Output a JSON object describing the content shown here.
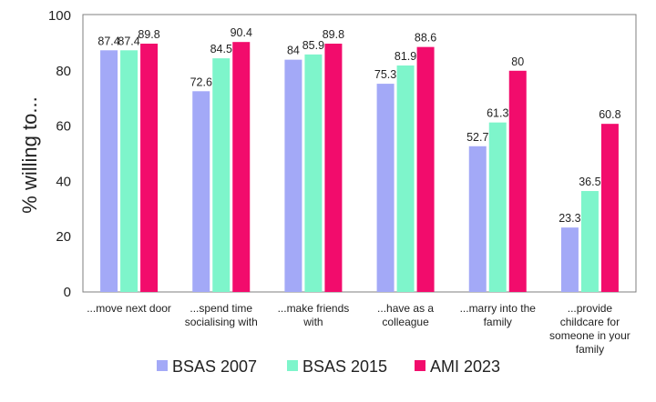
{
  "chart_data": {
    "type": "bar",
    "ylabel": "% willing to...",
    "ylim": [
      0,
      100
    ],
    "yticks": [
      0,
      20,
      40,
      60,
      80,
      100
    ],
    "grid": false,
    "legend_position": "bottom",
    "categories": [
      [
        "...move next door"
      ],
      [
        "...spend time",
        "socialising with"
      ],
      [
        "...make friends",
        "with"
      ],
      [
        "...have as a",
        "colleague"
      ],
      [
        "...marry into the",
        "family"
      ],
      [
        "...provide",
        "childcare for",
        "someone in your",
        "family"
      ]
    ],
    "series": [
      {
        "name": "BSAS 2007",
        "color": "#a3a9f7",
        "values": [
          87.4,
          72.6,
          84,
          75.3,
          52.7,
          23.3
        ]
      },
      {
        "name": "BSAS 2015",
        "color": "#7ef5cb",
        "values": [
          87.4,
          84.5,
          85.9,
          81.9,
          61.3,
          36.5
        ]
      },
      {
        "name": "AMI 2023",
        "color": "#f20c6c",
        "values": [
          89.8,
          90.4,
          89.8,
          88.6,
          80,
          60.8
        ]
      }
    ]
  }
}
